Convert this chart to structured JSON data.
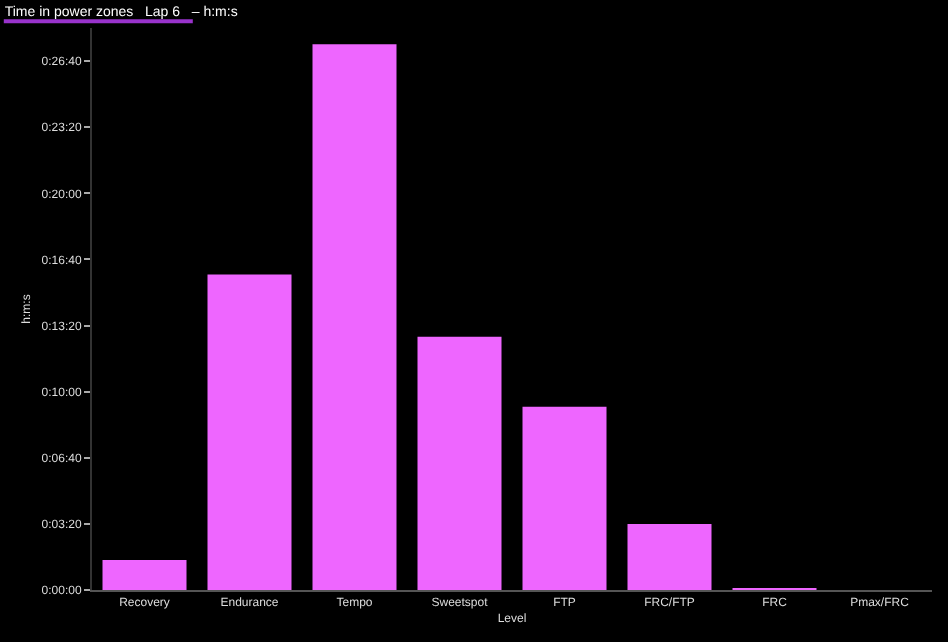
{
  "chart_data": {
    "type": "bar",
    "title": "Time in power zones   Lap 6   – h:m:s",
    "xlabel": "Level",
    "ylabel": "h:m:s",
    "categories": [
      "Recovery",
      "Endurance",
      "Tempo",
      "Sweetspot",
      "FTP",
      "FRC/FTP",
      "FRC",
      "Pmax/FRC"
    ],
    "values": [
      91,
      954,
      1651,
      766,
      554,
      200,
      6,
      0
    ],
    "color": "#ee66ff",
    "ylim": [
      0,
      1700
    ],
    "yticks": [
      {
        "value": 0,
        "label": "0:00:00"
      },
      {
        "value": 200,
        "label": "0:03:20"
      },
      {
        "value": 400,
        "label": "0:06:40"
      },
      {
        "value": 600,
        "label": "0:10:00"
      },
      {
        "value": 800,
        "label": "0:13:20"
      },
      {
        "value": 1000,
        "label": "0:16:40"
      },
      {
        "value": 1200,
        "label": "0:20:00"
      },
      {
        "value": 1400,
        "label": "0:23:20"
      },
      {
        "value": 1600,
        "label": "0:26:40"
      }
    ],
    "grid": false,
    "legend": false
  }
}
